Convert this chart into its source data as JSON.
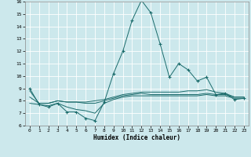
{
  "xlabel": "Humidex (Indice chaleur)",
  "xlim": [
    -0.5,
    23.5
  ],
  "ylim": [
    6,
    16
  ],
  "xticks": [
    0,
    1,
    2,
    3,
    4,
    5,
    6,
    7,
    8,
    9,
    10,
    11,
    12,
    13,
    14,
    15,
    16,
    17,
    18,
    19,
    20,
    21,
    22,
    23
  ],
  "yticks": [
    6,
    7,
    8,
    9,
    10,
    11,
    12,
    13,
    14,
    15,
    16
  ],
  "background_color": "#cce8ec",
  "grid_color": "#ffffff",
  "line_color": "#1a6b6b",
  "series": [
    {
      "x": [
        0,
        1,
        2,
        3,
        4,
        5,
        6,
        7,
        8,
        9,
        10,
        11,
        12,
        13,
        14,
        15,
        16,
        17,
        18,
        19,
        20,
        21,
        22,
        23
      ],
      "y": [
        9.0,
        7.7,
        7.5,
        7.8,
        7.1,
        7.1,
        6.6,
        6.4,
        7.9,
        10.2,
        12.0,
        14.5,
        16.1,
        15.1,
        12.6,
        9.9,
        11.0,
        10.5,
        9.6,
        9.9,
        8.5,
        8.6,
        8.1,
        8.2
      ],
      "marker": "+"
    },
    {
      "x": [
        0,
        1,
        2,
        3,
        4,
        5,
        6,
        7,
        8,
        9,
        10,
        11,
        12,
        13,
        14,
        15,
        16,
        17,
        18,
        19,
        20,
        21,
        22,
        23
      ],
      "y": [
        8.8,
        7.8,
        7.8,
        8.0,
        7.9,
        7.9,
        7.9,
        8.0,
        8.1,
        8.3,
        8.5,
        8.6,
        8.7,
        8.7,
        8.7,
        8.7,
        8.7,
        8.8,
        8.8,
        8.9,
        8.7,
        8.6,
        8.3,
        8.3
      ],
      "marker": null
    },
    {
      "x": [
        0,
        1,
        2,
        3,
        4,
        5,
        6,
        7,
        8,
        9,
        10,
        11,
        12,
        13,
        14,
        15,
        16,
        17,
        18,
        19,
        20,
        21,
        22,
        23
      ],
      "y": [
        8.3,
        7.8,
        7.8,
        8.0,
        7.9,
        7.9,
        7.8,
        7.8,
        8.0,
        8.2,
        8.4,
        8.5,
        8.6,
        8.5,
        8.5,
        8.5,
        8.5,
        8.5,
        8.5,
        8.6,
        8.5,
        8.5,
        8.3,
        8.3
      ],
      "marker": null
    },
    {
      "x": [
        0,
        1,
        2,
        3,
        4,
        5,
        6,
        7,
        8,
        9,
        10,
        11,
        12,
        13,
        14,
        15,
        16,
        17,
        18,
        19,
        20,
        21,
        22,
        23
      ],
      "y": [
        7.8,
        7.7,
        7.6,
        7.8,
        7.5,
        7.3,
        7.2,
        7.0,
        7.8,
        8.1,
        8.3,
        8.4,
        8.4,
        8.4,
        8.4,
        8.4,
        8.4,
        8.4,
        8.4,
        8.5,
        8.4,
        8.4,
        8.2,
        8.2
      ],
      "marker": null
    }
  ]
}
